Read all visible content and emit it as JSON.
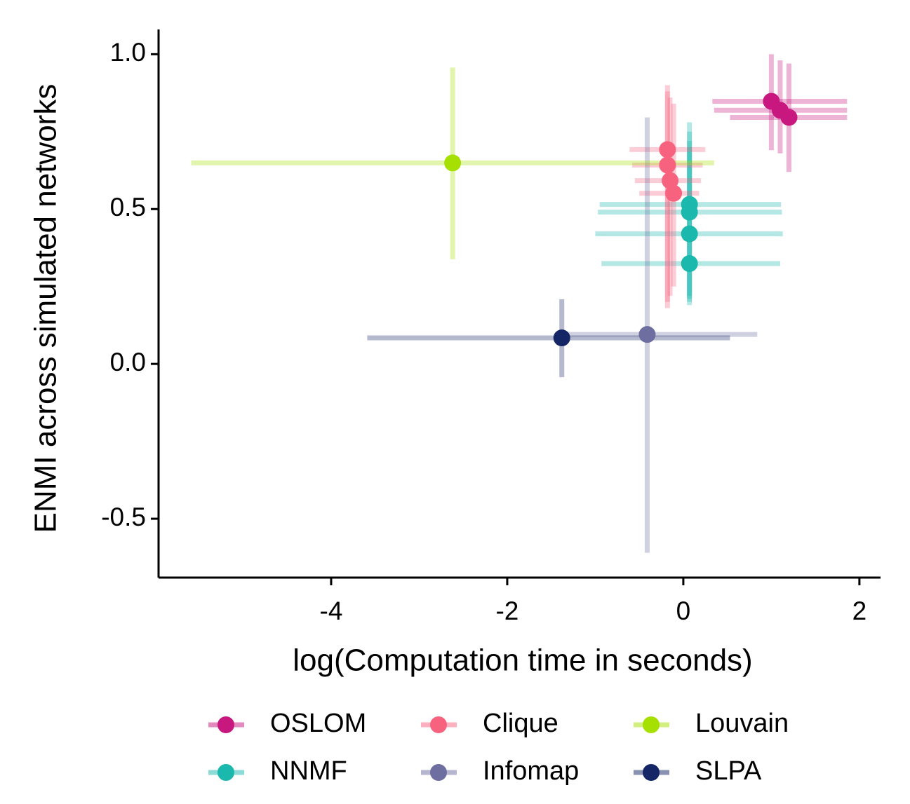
{
  "chart_data": {
    "type": "scatter",
    "x_label": "log(Computation time in seconds)",
    "y_label": "ENMI across simulated networks",
    "xlim": [
      -5.96,
      2.24
    ],
    "ylim": [
      -0.69,
      1.08
    ],
    "xticks": [
      -4,
      -2,
      0,
      2
    ],
    "yticks": [
      {
        "value": 1,
        "label": "1.0"
      },
      {
        "value": 0.5,
        "label": "0.5"
      },
      {
        "value": 0,
        "label": "0.0"
      },
      -0.5
    ],
    "series": [
      {
        "name": "OSLOM",
        "color": "#c8177e",
        "x": [
          1.0,
          1.1,
          1.2
        ],
        "values": [
          0.848,
          0.819,
          0.796
        ],
        "x_low": [
          0.33,
          0.35,
          0.53
        ],
        "x_high": [
          1.86,
          1.86,
          1.86
        ],
        "y_low": [
          0.69,
          0.68,
          0.62
        ],
        "y_high": [
          1.0,
          0.98,
          0.97
        ]
      },
      {
        "name": "NNMF",
        "color": "#1ab8ad",
        "x": [
          0.07,
          0.07,
          0.07,
          0.07
        ],
        "values": [
          0.515,
          0.49,
          0.42,
          0.324
        ],
        "x_low": [
          -0.95,
          -0.97,
          -1.0,
          -0.93
        ],
        "x_high": [
          1.11,
          1.12,
          1.13,
          1.1
        ],
        "y_low": [
          0.2,
          0.22,
          0.19,
          0.21
        ],
        "y_high": [
          0.78,
          0.75,
          0.72,
          0.7
        ]
      },
      {
        "name": "Clique",
        "color": "#f7637f",
        "x": [
          -0.18,
          -0.18,
          -0.15,
          -0.11
        ],
        "values": [
          0.692,
          0.642,
          0.592,
          0.551
        ],
        "x_low": [
          -0.61,
          -0.58,
          -0.55,
          -0.5
        ],
        "x_high": [
          0.25,
          0.22,
          0.2,
          0.18
        ],
        "y_low": [
          0.18,
          0.2,
          0.22,
          0.25
        ],
        "y_high": [
          0.9,
          0.88,
          0.86,
          0.84
        ]
      },
      {
        "name": "Infomap",
        "color": "#6e6fa0",
        "x": [
          -0.41
        ],
        "values": [
          0.095
        ],
        "x_low": [
          -1.39
        ],
        "x_high": [
          0.84
        ],
        "y_low": [
          -0.61
        ],
        "y_high": [
          0.796
        ]
      },
      {
        "name": "Louvain",
        "color": "#a6e000",
        "x": [
          -2.62
        ],
        "values": [
          0.649
        ],
        "x_low": [
          -5.59
        ],
        "x_high": [
          0.35
        ],
        "y_low": [
          0.338
        ],
        "y_high": [
          0.957
        ]
      },
      {
        "name": "SLPA",
        "color": "#152667",
        "x": [
          -1.38
        ],
        "values": [
          0.084
        ],
        "x_low": [
          -3.59
        ],
        "x_high": [
          0.53
        ],
        "y_low": [
          -0.043
        ],
        "y_high": [
          0.209
        ]
      }
    ]
  }
}
